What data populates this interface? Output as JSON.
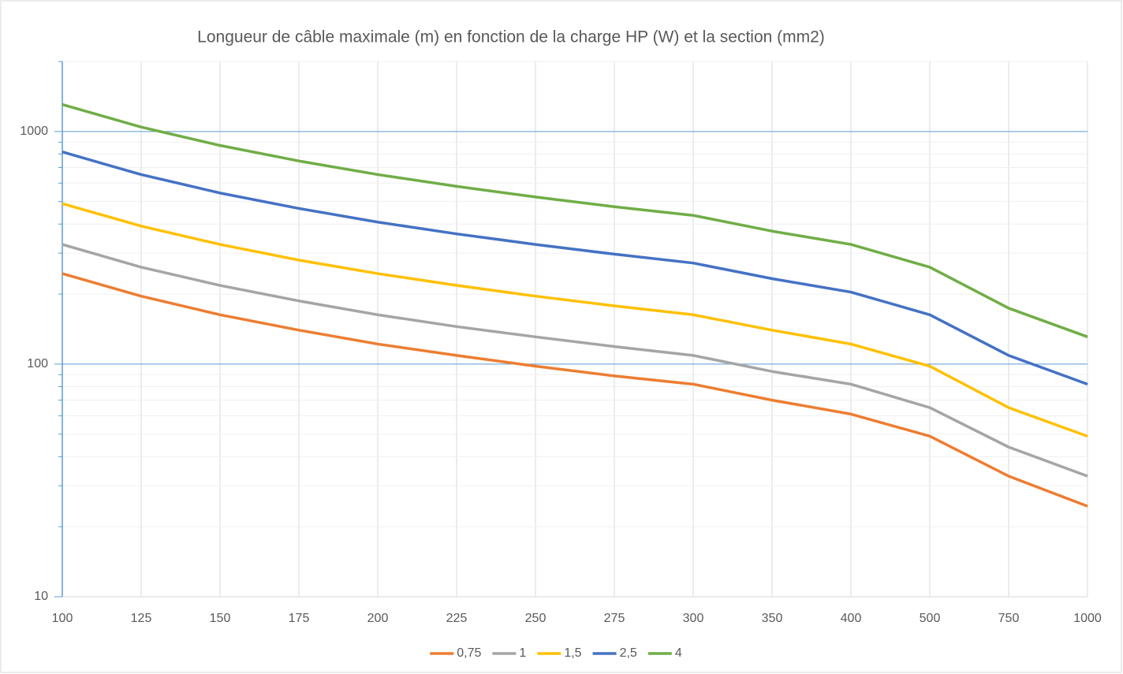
{
  "chart_data": {
    "type": "line",
    "title": "Longueur de câble maximale (m) en fonction de la charge HP (W) et la section (mm2)",
    "categories": [
      "100",
      "125",
      "150",
      "175",
      "200",
      "225",
      "250",
      "275",
      "300",
      "350",
      "400",
      "500",
      "750",
      "1000"
    ],
    "series": [
      {
        "name": "0,75",
        "color": "#ed7d31",
        "values": [
          245,
          196,
          163,
          140,
          122,
          109,
          98,
          89,
          82,
          70,
          61,
          49,
          33,
          24.5
        ]
      },
      {
        "name": "1",
        "color": "#a5a5a5",
        "values": [
          327,
          261,
          218,
          187,
          163,
          145,
          131,
          119,
          109,
          93,
          82,
          65,
          44,
          33
        ]
      },
      {
        "name": "1,5",
        "color": "#ffc000",
        "values": [
          490,
          392,
          327,
          280,
          245,
          218,
          196,
          178,
          163,
          140,
          122,
          98,
          65,
          49
        ]
      },
      {
        "name": "2,5",
        "color": "#4472c4",
        "values": [
          817,
          653,
          544,
          467,
          408,
          363,
          327,
          297,
          272,
          233,
          204,
          163,
          109,
          82
        ]
      },
      {
        "name": "4",
        "color": "#70ad47",
        "values": [
          1307,
          1045,
          871,
          747,
          653,
          581,
          523,
          475,
          436,
          373,
          327,
          261,
          174,
          131
        ]
      }
    ],
    "ylim": [
      10,
      2000
    ],
    "yticks": [
      10,
      100,
      1000
    ],
    "log_y": true,
    "grid": true,
    "legend": "bottom"
  }
}
